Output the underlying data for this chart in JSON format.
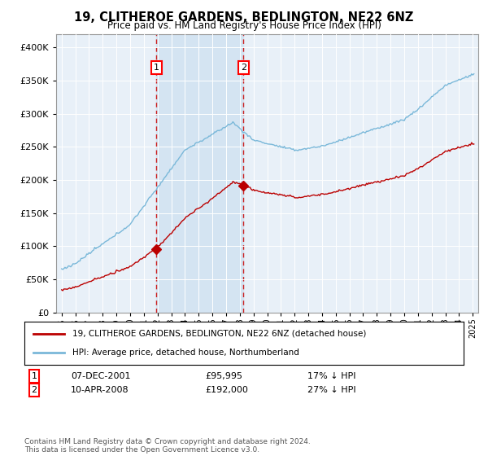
{
  "title": "19, CLITHEROE GARDENS, BEDLINGTON, NE22 6NZ",
  "subtitle": "Price paid vs. HM Land Registry's House Price Index (HPI)",
  "legend_line1": "19, CLITHEROE GARDENS, BEDLINGTON, NE22 6NZ (detached house)",
  "legend_line2": "HPI: Average price, detached house, Northumberland",
  "ann1_label": "1",
  "ann1_date": "07-DEC-2001",
  "ann1_price": "£95,995",
  "ann1_pct": "17% ↓ HPI",
  "ann1_year": 2001.92,
  "ann1_val": 95995,
  "ann2_label": "2",
  "ann2_date": "10-APR-2008",
  "ann2_price": "£192,000",
  "ann2_pct": "27% ↓ HPI",
  "ann2_year": 2008.27,
  "ann2_val": 192000,
  "footer": "Contains HM Land Registry data © Crown copyright and database right 2024.\nThis data is licensed under the Open Government Licence v3.0.",
  "hpi_color": "#7ab8d9",
  "price_color": "#bb0000",
  "vline_color": "#cc2222",
  "shade_color": "#cce0f0",
  "plot_bg": "#e8f0f8",
  "ylim": [
    0,
    420000
  ],
  "yticks": [
    0,
    50000,
    100000,
    150000,
    200000,
    250000,
    300000,
    350000,
    400000
  ],
  "xlim_start": 1994.6,
  "xlim_end": 2025.4
}
